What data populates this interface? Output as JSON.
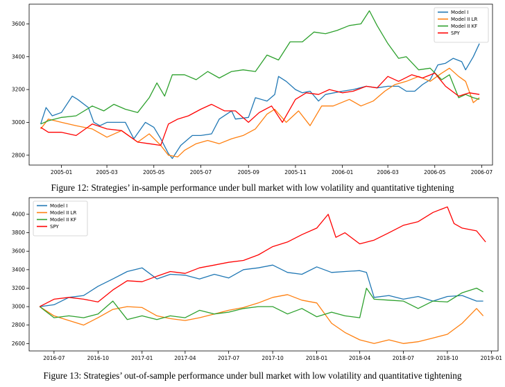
{
  "colors": {
    "model_i": "#1f77b4",
    "model_ii_lr": "#ff7f0e",
    "model_ii_kf": "#2ca02c",
    "spy": "#ff0000"
  },
  "chart_data": [
    {
      "type": "line",
      "legend_position": "top-right",
      "grid": false,
      "xlim": [
        "2004-11-20",
        "2006-07-15"
      ],
      "ylim": [
        2740,
        3720
      ],
      "yticks": [
        2800,
        3000,
        3200,
        3400,
        3600
      ],
      "xticks": [
        "2005-01",
        "2005-03",
        "2005-05",
        "2005-07",
        "2005-09",
        "2005-11",
        "2006-01",
        "2006-03",
        "2006-05",
        "2006-07"
      ],
      "xtick_dates": [
        "2005-01-01",
        "2005-03-01",
        "2005-05-01",
        "2005-07-01",
        "2005-09-01",
        "2005-11-01",
        "2006-01-01",
        "2006-03-01",
        "2006-05-01",
        "2006-07-01"
      ],
      "series": [
        {
          "name": "Model I",
          "color": "#1f77b4",
          "x": [
            "2004-12-05",
            "2004-12-12",
            "2004-12-20",
            "2005-01-01",
            "2005-01-15",
            "2005-01-22",
            "2005-02-05",
            "2005-02-12",
            "2005-02-20",
            "2005-03-01",
            "2005-03-15",
            "2005-03-25",
            "2005-04-05",
            "2005-04-20",
            "2005-05-01",
            "2005-05-10",
            "2005-05-20",
            "2005-05-25",
            "2005-06-05",
            "2005-06-20",
            "2005-07-01",
            "2005-07-15",
            "2005-07-25",
            "2005-08-10",
            "2005-08-15",
            "2005-09-01",
            "2005-09-10",
            "2005-09-25",
            "2005-10-05",
            "2005-10-10",
            "2005-10-20",
            "2005-11-01",
            "2005-11-10",
            "2005-11-20",
            "2005-12-01",
            "2005-12-10",
            "2006-01-01",
            "2006-01-15",
            "2006-02-01",
            "2006-02-15",
            "2006-03-01",
            "2006-03-15",
            "2006-03-25",
            "2006-04-05",
            "2006-04-15",
            "2006-04-25",
            "2006-05-05",
            "2006-05-15",
            "2006-05-25",
            "2006-06-05",
            "2006-06-10",
            "2006-06-20",
            "2006-06-28"
          ],
          "y": [
            2990,
            3090,
            3040,
            3060,
            3160,
            3140,
            3090,
            3000,
            2980,
            3000,
            3000,
            3000,
            2900,
            3000,
            2970,
            2900,
            2810,
            2780,
            2860,
            2920,
            2920,
            2930,
            3020,
            3070,
            3020,
            3030,
            3150,
            3130,
            3170,
            3280,
            3250,
            3200,
            3180,
            3190,
            3130,
            3170,
            3190,
            3200,
            3220,
            3210,
            3220,
            3220,
            3190,
            3190,
            3230,
            3260,
            3350,
            3360,
            3390,
            3370,
            3320,
            3400,
            3480
          ]
        },
        {
          "name": "Model II LR",
          "color": "#ff7f0e",
          "x": [
            "2004-12-05",
            "2004-12-15",
            "2005-01-01",
            "2005-01-20",
            "2005-02-10",
            "2005-03-01",
            "2005-03-20",
            "2005-04-10",
            "2005-04-25",
            "2005-05-10",
            "2005-05-20",
            "2005-06-01",
            "2005-06-10",
            "2005-06-25",
            "2005-07-10",
            "2005-07-25",
            "2005-08-10",
            "2005-08-25",
            "2005-09-10",
            "2005-09-25",
            "2005-10-05",
            "2005-10-20",
            "2005-11-05",
            "2005-11-20",
            "2005-12-05",
            "2005-12-20",
            "2006-01-10",
            "2006-01-25",
            "2006-02-10",
            "2006-02-25",
            "2006-03-10",
            "2006-03-25",
            "2006-04-10",
            "2006-04-25",
            "2006-05-10",
            "2006-05-20",
            "2006-06-01",
            "2006-06-10",
            "2006-06-20",
            "2006-06-28"
          ],
          "y": [
            2960,
            3020,
            3000,
            2980,
            2960,
            2910,
            2950,
            2880,
            2930,
            2860,
            2800,
            2790,
            2830,
            2870,
            2890,
            2870,
            2900,
            2920,
            2960,
            3050,
            3080,
            3000,
            3070,
            2980,
            3100,
            3100,
            3140,
            3100,
            3130,
            3190,
            3230,
            3250,
            3280,
            3250,
            3300,
            3330,
            3280,
            3250,
            3120,
            3150
          ]
        },
        {
          "name": "Model II KF",
          "color": "#2ca02c",
          "x": [
            "2004-12-05",
            "2004-12-15",
            "2005-01-01",
            "2005-01-20",
            "2005-02-10",
            "2005-02-25",
            "2005-03-10",
            "2005-03-25",
            "2005-04-10",
            "2005-04-25",
            "2005-05-05",
            "2005-05-15",
            "2005-05-25",
            "2005-06-10",
            "2005-06-25",
            "2005-07-10",
            "2005-07-25",
            "2005-08-10",
            "2005-08-25",
            "2005-09-10",
            "2005-09-25",
            "2005-10-10",
            "2005-10-25",
            "2005-11-10",
            "2005-11-25",
            "2005-12-10",
            "2005-12-25",
            "2006-01-10",
            "2006-01-25",
            "2006-02-05",
            "2006-02-15",
            "2006-03-01",
            "2006-03-15",
            "2006-03-25",
            "2006-04-10",
            "2006-04-25",
            "2006-05-10",
            "2006-05-20",
            "2006-06-01",
            "2006-06-10",
            "2006-06-20",
            "2006-06-28"
          ],
          "y": [
            2990,
            3010,
            3030,
            3040,
            3100,
            3070,
            3110,
            3080,
            3060,
            3150,
            3240,
            3160,
            3290,
            3290,
            3260,
            3310,
            3270,
            3310,
            3320,
            3310,
            3410,
            3380,
            3490,
            3490,
            3550,
            3540,
            3560,
            3590,
            3600,
            3680,
            3590,
            3480,
            3390,
            3400,
            3320,
            3330,
            3260,
            3290,
            3150,
            3170,
            3150,
            3140
          ]
        },
        {
          "name": "SPY",
          "color": "#ff0000",
          "x": [
            "2004-12-05",
            "2004-12-15",
            "2005-01-01",
            "2005-01-20",
            "2005-02-10",
            "2005-03-01",
            "2005-03-20",
            "2005-04-10",
            "2005-04-25",
            "2005-05-10",
            "2005-05-20",
            "2005-06-01",
            "2005-06-15",
            "2005-07-01",
            "2005-07-15",
            "2005-08-01",
            "2005-08-15",
            "2005-09-01",
            "2005-09-15",
            "2005-10-01",
            "2005-10-15",
            "2005-11-01",
            "2005-11-15",
            "2005-12-01",
            "2005-12-15",
            "2006-01-01",
            "2006-01-15",
            "2006-02-01",
            "2006-02-15",
            "2006-03-01",
            "2006-03-15",
            "2006-04-01",
            "2006-04-15",
            "2006-05-01",
            "2006-05-15",
            "2006-06-01",
            "2006-06-15",
            "2006-06-28"
          ],
          "y": [
            2970,
            2940,
            2940,
            2920,
            2990,
            2960,
            2950,
            2880,
            2870,
            2860,
            2990,
            3020,
            3040,
            3080,
            3110,
            3070,
            3070,
            3000,
            3060,
            3100,
            3000,
            3140,
            3180,
            3170,
            3200,
            3180,
            3190,
            3220,
            3210,
            3280,
            3250,
            3290,
            3270,
            3300,
            3220,
            3160,
            3180,
            3170
          ]
        }
      ]
    },
    {
      "type": "line",
      "legend_position": "top-left",
      "grid": false,
      "xlim": [
        "2016-05-10",
        "2019-01-15"
      ],
      "ylim": [
        2520,
        4180
      ],
      "yticks": [
        2600,
        2800,
        3000,
        3200,
        3400,
        3600,
        3800,
        4000
      ],
      "xticks": [
        "2016-07",
        "2016-10",
        "2017-01",
        "2017-04",
        "2017-07",
        "2017-10",
        "2018-01",
        "2018-04",
        "2018-07",
        "2018-10",
        "2019-01"
      ],
      "xtick_dates": [
        "2016-07-01",
        "2016-10-01",
        "2017-01-01",
        "2017-04-01",
        "2017-07-01",
        "2017-10-01",
        "2018-01-01",
        "2018-04-01",
        "2018-07-01",
        "2018-10-01",
        "2019-01-01"
      ],
      "series": [
        {
          "name": "Model I",
          "color": "#1f77b4",
          "x": [
            "2016-06-01",
            "2016-07-01",
            "2016-08-01",
            "2016-09-01",
            "2016-10-01",
            "2016-11-01",
            "2016-12-01",
            "2017-01-01",
            "2017-02-01",
            "2017-03-01",
            "2017-04-01",
            "2017-05-01",
            "2017-06-01",
            "2017-07-01",
            "2017-08-01",
            "2017-09-01",
            "2017-10-01",
            "2017-11-01",
            "2017-12-01",
            "2018-01-01",
            "2018-02-01",
            "2018-03-01",
            "2018-04-01",
            "2018-04-15",
            "2018-05-01",
            "2018-06-01",
            "2018-07-01",
            "2018-08-01",
            "2018-09-01",
            "2018-10-01",
            "2018-11-01",
            "2018-12-01",
            "2018-12-15"
          ],
          "y": [
            3000,
            3020,
            3100,
            3120,
            3220,
            3300,
            3380,
            3420,
            3300,
            3350,
            3340,
            3300,
            3350,
            3310,
            3400,
            3420,
            3450,
            3370,
            3350,
            3430,
            3370,
            3380,
            3390,
            3370,
            3100,
            3120,
            3080,
            3110,
            3060,
            3110,
            3120,
            3060,
            3060
          ]
        },
        {
          "name": "Model II LR",
          "color": "#ff7f0e",
          "x": [
            "2016-06-01",
            "2016-07-01",
            "2016-08-01",
            "2016-09-01",
            "2016-10-01",
            "2016-11-01",
            "2016-12-01",
            "2017-01-01",
            "2017-02-01",
            "2017-03-01",
            "2017-04-01",
            "2017-05-01",
            "2017-06-01",
            "2017-07-01",
            "2017-08-01",
            "2017-09-01",
            "2017-10-01",
            "2017-11-01",
            "2017-12-01",
            "2018-01-01",
            "2018-02-01",
            "2018-03-01",
            "2018-04-01",
            "2018-05-01",
            "2018-06-01",
            "2018-07-01",
            "2018-08-01",
            "2018-09-01",
            "2018-10-01",
            "2018-11-01",
            "2018-12-01",
            "2018-12-15"
          ],
          "y": [
            3000,
            2900,
            2850,
            2800,
            2880,
            2970,
            3000,
            2990,
            2900,
            2870,
            2850,
            2880,
            2920,
            2960,
            2990,
            3040,
            3100,
            3130,
            3070,
            3040,
            2820,
            2720,
            2640,
            2600,
            2640,
            2600,
            2620,
            2660,
            2700,
            2820,
            2980,
            2900
          ]
        },
        {
          "name": "Model II KF",
          "color": "#2ca02c",
          "x": [
            "2016-06-01",
            "2016-07-01",
            "2016-08-01",
            "2016-09-01",
            "2016-10-01",
            "2016-11-01",
            "2016-12-01",
            "2017-01-01",
            "2017-02-01",
            "2017-03-01",
            "2017-04-01",
            "2017-05-01",
            "2017-06-01",
            "2017-07-01",
            "2017-08-01",
            "2017-09-01",
            "2017-10-01",
            "2017-11-01",
            "2017-12-01",
            "2018-01-01",
            "2018-02-01",
            "2018-03-01",
            "2018-04-01",
            "2018-04-15",
            "2018-05-01",
            "2018-06-01",
            "2018-07-01",
            "2018-08-01",
            "2018-09-01",
            "2018-10-01",
            "2018-11-01",
            "2018-12-01",
            "2018-12-15"
          ],
          "y": [
            3000,
            2880,
            2900,
            2880,
            2920,
            3060,
            2860,
            2900,
            2860,
            2900,
            2880,
            2960,
            2920,
            2940,
            2980,
            3000,
            3000,
            2920,
            2980,
            2890,
            2940,
            2900,
            2880,
            3200,
            3080,
            3070,
            3060,
            2980,
            3060,
            3050,
            3150,
            3200,
            3160
          ]
        },
        {
          "name": "SPY",
          "color": "#ff0000",
          "x": [
            "2016-06-01",
            "2016-07-01",
            "2016-08-01",
            "2016-09-01",
            "2016-10-01",
            "2016-11-01",
            "2016-12-01",
            "2017-01-01",
            "2017-02-01",
            "2017-03-01",
            "2017-04-01",
            "2017-05-01",
            "2017-06-01",
            "2017-07-01",
            "2017-08-01",
            "2017-09-01",
            "2017-10-01",
            "2017-11-01",
            "2017-12-01",
            "2018-01-01",
            "2018-01-25",
            "2018-02-10",
            "2018-03-01",
            "2018-04-01",
            "2018-05-01",
            "2018-06-01",
            "2018-07-01",
            "2018-08-01",
            "2018-09-01",
            "2018-10-01",
            "2018-10-15",
            "2018-11-01",
            "2018-12-01",
            "2018-12-20"
          ],
          "y": [
            3000,
            3080,
            3100,
            3080,
            3050,
            3180,
            3280,
            3270,
            3330,
            3380,
            3360,
            3420,
            3450,
            3480,
            3500,
            3560,
            3650,
            3700,
            3780,
            3850,
            4000,
            3750,
            3800,
            3680,
            3720,
            3800,
            3880,
            3920,
            4020,
            4080,
            3900,
            3850,
            3820,
            3700
          ]
        }
      ]
    }
  ],
  "captions": {
    "fig12": "Figure 12: Strategies’ in-sample performance under bull market with low volatility and quantitative tightening",
    "fig13": "Figure 13: Strategies’ out-of-sample performance under bull market with low volatility and quantitative tightening"
  }
}
